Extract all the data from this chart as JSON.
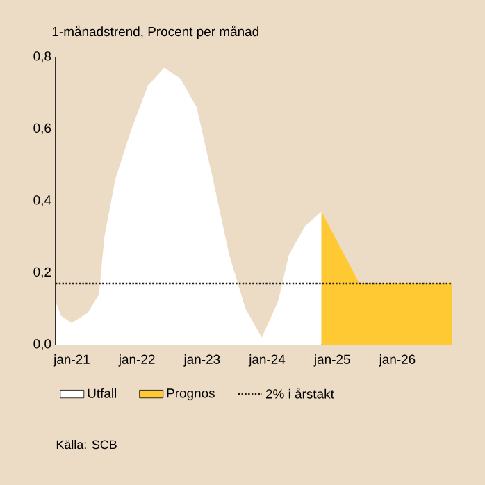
{
  "chart_data": {
    "type": "area",
    "title": "1-månadstrend, Procent per månad",
    "xlim": [
      "2020-10",
      "2026-11"
    ],
    "ylim": [
      0,
      0.8
    ],
    "xticks": [
      {
        "value": "2021-01",
        "label": "jan-21"
      },
      {
        "value": "2022-01",
        "label": "jan-22"
      },
      {
        "value": "2023-01",
        "label": "jan-23"
      },
      {
        "value": "2024-01",
        "label": "jan-24"
      },
      {
        "value": "2025-01",
        "label": "jan-25"
      },
      {
        "value": "2026-01",
        "label": "jan-26"
      }
    ],
    "yticks": [
      {
        "value": 0,
        "label": "0,0"
      },
      {
        "value": 0.2,
        "label": "0,2"
      },
      {
        "value": 0.4,
        "label": "0,4"
      },
      {
        "value": 0.6,
        "label": "0,6"
      },
      {
        "value": 0.8,
        "label": "0,8"
      }
    ],
    "series": [
      {
        "name": "Utfall",
        "color": "#ffffff",
        "x": [
          "2020-10",
          "2020-11",
          "2021-01",
          "2021-04",
          "2021-06",
          "2021-07",
          "2021-09",
          "2021-12",
          "2022-03",
          "2022-06",
          "2022-09",
          "2022-12",
          "2023-03",
          "2023-06",
          "2023-09",
          "2023-12",
          "2024-03",
          "2024-05",
          "2024-08",
          "2024-11"
        ],
        "values": [
          0.12,
          0.08,
          0.06,
          0.09,
          0.14,
          0.3,
          0.46,
          0.6,
          0.72,
          0.77,
          0.74,
          0.66,
          0.46,
          0.25,
          0.1,
          0.02,
          0.12,
          0.25,
          0.33,
          0.37
        ]
      },
      {
        "name": "Prognos",
        "color": "#ffc933",
        "x": [
          "2024-11",
          "2025-06",
          "2026-11"
        ],
        "values": [
          0.37,
          0.17,
          0.17
        ]
      }
    ],
    "ref_lines": [
      {
        "axis": "y",
        "value": 0.17,
        "label": "2% i årstakt",
        "color": "#1a1a1a",
        "line_style": "dotted"
      }
    ],
    "grid": false,
    "legend": "bottom",
    "annotations": [
      "Källa: SCB"
    ]
  }
}
